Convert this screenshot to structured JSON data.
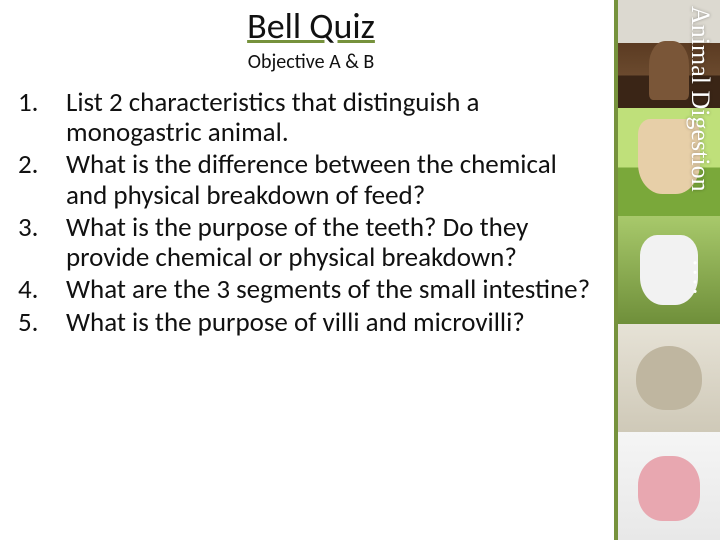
{
  "title": "Bell Quiz",
  "subtitle": "Objective A & B",
  "questions": [
    {
      "n": "1.",
      "t": "List 2 characteristics that distinguish a monogastric animal."
    },
    {
      "n": "2.",
      "t": "What is the difference between the chemical and physical breakdown of feed?"
    },
    {
      "n": "3.",
      "t": "What is the purpose of the teeth?  Do they provide chemical or physical breakdown?"
    },
    {
      "n": "4.",
      "t": "What are the 3 segments of the small intestine?"
    },
    {
      "n": "5.",
      "t": "What is the purpose of villi and microvilli?"
    }
  ],
  "sidebar_label": "Animal Digestion",
  "colors": {
    "accent": "#76923c",
    "text": "#111111",
    "background": "#ffffff"
  },
  "typography": {
    "title_size": 36,
    "subtitle_size": 20,
    "body_size": 27,
    "sidebar_font": "Comic Sans MS"
  }
}
